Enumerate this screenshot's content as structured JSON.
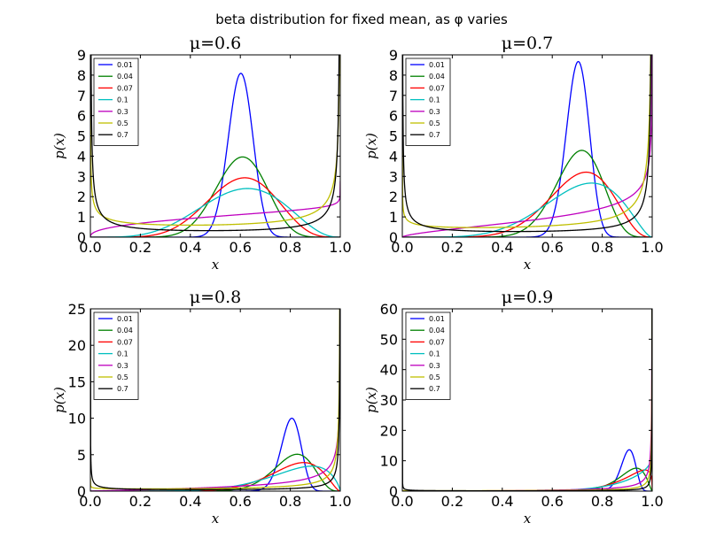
{
  "figure": {
    "suptitle": "beta distribution for fixed mean, as φ varies"
  },
  "chart_data": [
    {
      "type": "line",
      "title": "μ=0.6",
      "mean": 0.6,
      "xlabel": "x",
      "ylabel": "p(x)",
      "xlim": [
        0,
        1
      ],
      "ylim": [
        0,
        9
      ],
      "xticks": [
        "0.0",
        "0.2",
        "0.4",
        "0.6",
        "0.8",
        "1.0"
      ],
      "yticks": [
        "0",
        "1",
        "2",
        "3",
        "4",
        "5",
        "6",
        "7",
        "8",
        "9"
      ],
      "legend": "top-left",
      "series": [
        {
          "name": "0.01",
          "phi": 0.01,
          "color": "#0000ff"
        },
        {
          "name": "0.04",
          "phi": 0.04,
          "color": "#008000"
        },
        {
          "name": "0.07",
          "phi": 0.07,
          "color": "#ff0000"
        },
        {
          "name": "0.1",
          "phi": 0.1,
          "color": "#00bfbf"
        },
        {
          "name": "0.3",
          "phi": 0.3,
          "color": "#bf00bf"
        },
        {
          "name": "0.5",
          "phi": 0.5,
          "color": "#bfbf00"
        },
        {
          "name": "0.7",
          "phi": 0.7,
          "color": "#000000"
        }
      ]
    },
    {
      "type": "line",
      "title": "μ=0.7",
      "mean": 0.7,
      "xlabel": "x",
      "ylabel": "p(x)",
      "xlim": [
        0,
        1
      ],
      "ylim": [
        0,
        9
      ],
      "xticks": [
        "0.0",
        "0.2",
        "0.4",
        "0.6",
        "0.8",
        "1.0"
      ],
      "yticks": [
        "0",
        "1",
        "2",
        "3",
        "4",
        "5",
        "6",
        "7",
        "8",
        "9"
      ],
      "legend": "top-left",
      "series": [
        {
          "name": "0.01",
          "phi": 0.01,
          "color": "#0000ff"
        },
        {
          "name": "0.04",
          "phi": 0.04,
          "color": "#008000"
        },
        {
          "name": "0.07",
          "phi": 0.07,
          "color": "#ff0000"
        },
        {
          "name": "0.1",
          "phi": 0.1,
          "color": "#00bfbf"
        },
        {
          "name": "0.3",
          "phi": 0.3,
          "color": "#bf00bf"
        },
        {
          "name": "0.5",
          "phi": 0.5,
          "color": "#bfbf00"
        },
        {
          "name": "0.7",
          "phi": 0.7,
          "color": "#000000"
        }
      ]
    },
    {
      "type": "line",
      "title": "μ=0.8",
      "mean": 0.8,
      "xlabel": "x",
      "ylabel": "p(x)",
      "xlim": [
        0,
        1
      ],
      "ylim": [
        0,
        25
      ],
      "xticks": [
        "0.0",
        "0.2",
        "0.4",
        "0.6",
        "0.8",
        "1.0"
      ],
      "yticks": [
        "0",
        "5",
        "10",
        "15",
        "20",
        "25"
      ],
      "legend": "top-left",
      "series": [
        {
          "name": "0.01",
          "phi": 0.01,
          "color": "#0000ff"
        },
        {
          "name": "0.04",
          "phi": 0.04,
          "color": "#008000"
        },
        {
          "name": "0.07",
          "phi": 0.07,
          "color": "#ff0000"
        },
        {
          "name": "0.1",
          "phi": 0.1,
          "color": "#00bfbf"
        },
        {
          "name": "0.3",
          "phi": 0.3,
          "color": "#bf00bf"
        },
        {
          "name": "0.5",
          "phi": 0.5,
          "color": "#bfbf00"
        },
        {
          "name": "0.7",
          "phi": 0.7,
          "color": "#000000"
        }
      ]
    },
    {
      "type": "line",
      "title": "μ=0.9",
      "mean": 0.9,
      "xlabel": "x",
      "ylabel": "p(x)",
      "xlim": [
        0,
        1
      ],
      "ylim": [
        0,
        60
      ],
      "xticks": [
        "0.0",
        "0.2",
        "0.4",
        "0.6",
        "0.8",
        "1.0"
      ],
      "yticks": [
        "0",
        "10",
        "20",
        "30",
        "40",
        "50",
        "60"
      ],
      "legend": "top-left",
      "series": [
        {
          "name": "0.01",
          "phi": 0.01,
          "color": "#0000ff"
        },
        {
          "name": "0.04",
          "phi": 0.04,
          "color": "#008000"
        },
        {
          "name": "0.07",
          "phi": 0.07,
          "color": "#ff0000"
        },
        {
          "name": "0.1",
          "phi": 0.1,
          "color": "#00bfbf"
        },
        {
          "name": "0.3",
          "phi": 0.3,
          "color": "#bf00bf"
        },
        {
          "name": "0.5",
          "phi": 0.5,
          "color": "#bfbf00"
        },
        {
          "name": "0.7",
          "phi": 0.7,
          "color": "#000000"
        }
      ]
    }
  ]
}
